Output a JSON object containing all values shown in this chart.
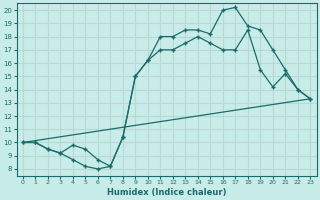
{
  "xlabel": "Humidex (Indice chaleur)",
  "xlim": [
    -0.5,
    23.5
  ],
  "ylim": [
    7.5,
    20.5
  ],
  "yticks": [
    8,
    9,
    10,
    11,
    12,
    13,
    14,
    15,
    16,
    17,
    18,
    19,
    20
  ],
  "xticks": [
    0,
    1,
    2,
    3,
    4,
    5,
    6,
    7,
    8,
    9,
    10,
    11,
    12,
    13,
    14,
    15,
    16,
    17,
    18,
    19,
    20,
    21,
    22,
    23
  ],
  "bg_color": "#c8ece8",
  "line_color": "#1a6b6b",
  "grid_color": "#b8d8d4",
  "line1_x": [
    0,
    1,
    2,
    3,
    4,
    5,
    6,
    7,
    8,
    9,
    10,
    11,
    12,
    13,
    14,
    15,
    16,
    17,
    18,
    19,
    20,
    21,
    22,
    23
  ],
  "line1_y": [
    10.0,
    10.0,
    9.5,
    9.2,
    8.7,
    8.2,
    8.0,
    8.2,
    10.4,
    15.0,
    16.2,
    17.0,
    17.0,
    17.5,
    18.0,
    17.5,
    17.0,
    17.0,
    18.5,
    15.5,
    14.2,
    15.2,
    14.0,
    13.3
  ],
  "line2_x": [
    0,
    1,
    2,
    3,
    4,
    5,
    6,
    7,
    8,
    9,
    10,
    11,
    12,
    13,
    14,
    15,
    16,
    17,
    18,
    19,
    20,
    21,
    22,
    23
  ],
  "line2_y": [
    10.0,
    10.0,
    9.5,
    9.2,
    9.8,
    9.5,
    8.7,
    8.2,
    10.4,
    15.0,
    16.2,
    18.0,
    18.0,
    18.5,
    18.5,
    18.2,
    20.0,
    20.2,
    18.8,
    18.5,
    17.0,
    15.5,
    14.0,
    13.3
  ],
  "line3_x": [
    0,
    23
  ],
  "line3_y": [
    10.0,
    13.3
  ]
}
